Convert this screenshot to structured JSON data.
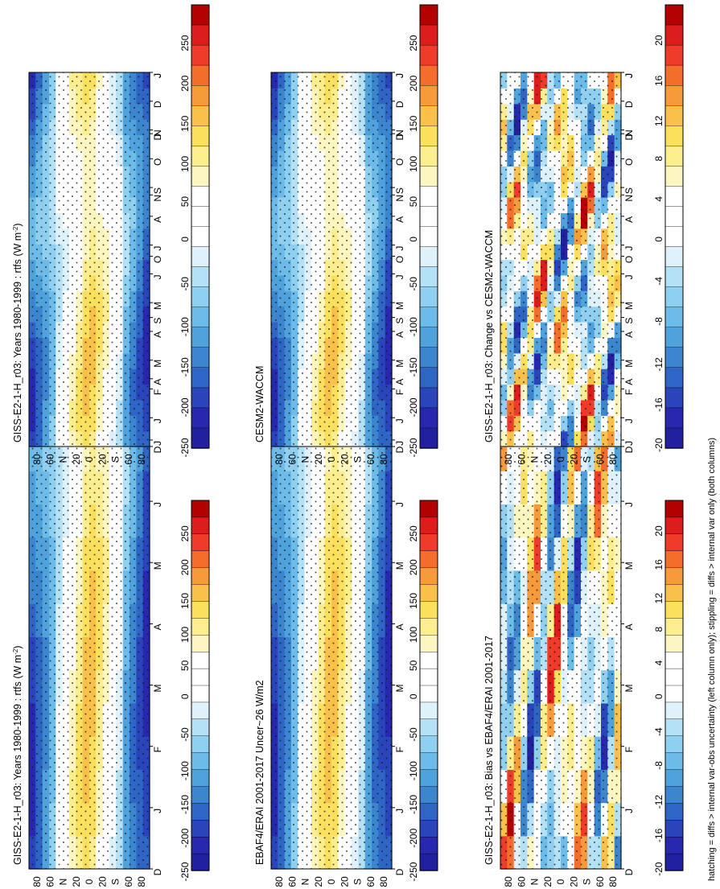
{
  "figure": {
    "footnote": "hatching = diffs > internal var-obs uncertainty (left column only); stippling = diffs > internal var only (both columns)"
  },
  "chart_data": [
    {
      "type": "heatmap",
      "title": "GISS-E2-1-H_r03: Years 1980-1999 : rtfs (W m",
      "title_sup": "-2",
      "title_tail": ")",
      "months": [
        "D",
        "J",
        "F",
        "M",
        "A",
        "M",
        "J",
        "J",
        "A",
        "S",
        "O",
        "N",
        "D",
        "J"
      ],
      "lat_ticks": [
        "80",
        "60",
        "N",
        "20",
        "0",
        "20",
        "S",
        "60",
        "80"
      ],
      "colorbar": [
        "250",
        "200",
        "150",
        "100",
        "50",
        "0",
        "-50",
        "-100",
        "-150",
        "-200",
        "-250"
      ],
      "hatching": true
    },
    {
      "type": "heatmap",
      "title": "GISS-E2-1-H_r03: Years 1980-1999 : rtfs (W m",
      "title_sup": "-2",
      "title_tail": ")",
      "months": [
        "D",
        "J",
        "F",
        "M",
        "A",
        "M",
        "J",
        "J",
        "A",
        "S",
        "O",
        "N",
        "D",
        "J"
      ],
      "lat_ticks": [
        "80",
        "60",
        "N",
        "20",
        "0",
        "20",
        "S",
        "60",
        "80"
      ],
      "colorbar": [
        "250",
        "200",
        "150",
        "100",
        "50",
        "0",
        "-50",
        "-100",
        "-150",
        "-200",
        "-250"
      ],
      "hatching": false
    },
    {
      "type": "heatmap",
      "title": "EBAF4/ERAI 2001-2017 Uncer~26 W/m2",
      "months": [
        "D",
        "J",
        "F",
        "M",
        "A",
        "M",
        "J",
        "J",
        "A",
        "S",
        "O",
        "N",
        "D",
        "J"
      ],
      "lat_ticks": [
        "80",
        "60",
        "N",
        "20",
        "0",
        "20",
        "S",
        "60",
        "80"
      ],
      "colorbar": [
        "250",
        "200",
        "150",
        "100",
        "50",
        "0",
        "-50",
        "-100",
        "-150",
        "-200",
        "-250"
      ],
      "hatching": true
    },
    {
      "type": "heatmap",
      "title": "CESM2-WACCM",
      "months": [
        "D",
        "J",
        "F",
        "M",
        "A",
        "M",
        "J",
        "J",
        "A",
        "S",
        "O",
        "N",
        "D",
        "J"
      ],
      "lat_ticks": [
        "80",
        "60",
        "N",
        "20",
        "0",
        "20",
        "S",
        "60",
        "80"
      ],
      "colorbar": [
        "250",
        "200",
        "150",
        "100",
        "50",
        "0",
        "-50",
        "-100",
        "-150",
        "-200",
        "-250"
      ],
      "hatching": false
    },
    {
      "type": "heatmap",
      "title": "GISS-E2-1-H_r03: Bias vs EBAF4/ERAI 2001-2017",
      "months": [
        "D",
        "J",
        "F",
        "M",
        "A",
        "M",
        "J",
        "J",
        "A",
        "S",
        "O",
        "N",
        "D",
        "J"
      ],
      "lat_ticks": [
        "80",
        "60",
        "N",
        "20",
        "0",
        "20",
        "S",
        "60",
        "80"
      ],
      "colorbar": [
        "20",
        "16",
        "12",
        "8",
        "4",
        "0",
        "-4",
        "-8",
        "-12",
        "-16",
        "-20"
      ],
      "hatching": true
    },
    {
      "type": "heatmap",
      "title": "GISS-E2-1-H_r03: Change vs CESM2-WACCM",
      "months": [
        "D",
        "J",
        "F",
        "M",
        "A",
        "M",
        "J",
        "J",
        "A",
        "S",
        "O",
        "N",
        "D",
        "J"
      ],
      "lat_ticks": [
        "80",
        "60",
        "N",
        "20",
        "0",
        "20",
        "S",
        "60",
        "80"
      ],
      "colorbar": [
        "20",
        "16",
        "12",
        "8",
        "4",
        "0",
        "-4",
        "-8",
        "-12",
        "-16",
        "-20"
      ],
      "hatching": false
    }
  ]
}
